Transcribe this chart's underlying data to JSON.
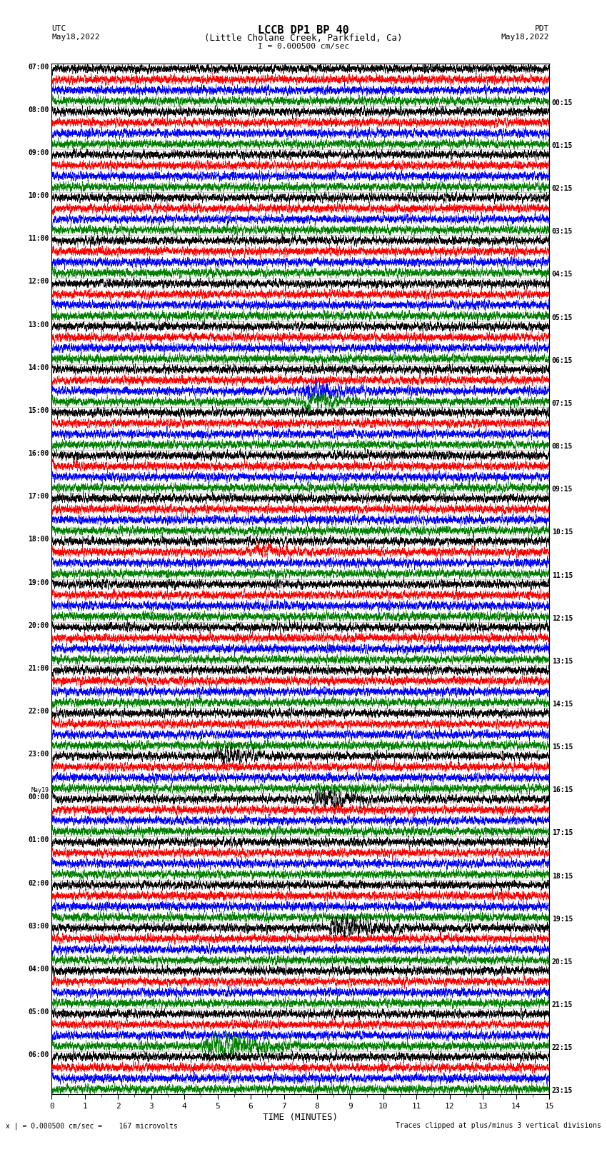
{
  "title_line1": "LCCB DP1 BP 40",
  "title_line2": "(Little Cholane Creek, Parkfield, Ca)",
  "scale_label": "I = 0.000500 cm/sec",
  "utc_label": "UTC",
  "pdt_label": "PDT",
  "date_left": "May18,2022",
  "date_right": "May18,2022",
  "xlabel": "TIME (MINUTES)",
  "footer_left": "x | = 0.000500 cm/sec =    167 microvolts",
  "footer_right": "Traces clipped at plus/minus 3 vertical divisions",
  "left_times": [
    "07:00",
    "08:00",
    "09:00",
    "10:00",
    "11:00",
    "12:00",
    "13:00",
    "14:00",
    "15:00",
    "16:00",
    "17:00",
    "18:00",
    "19:00",
    "20:00",
    "21:00",
    "22:00",
    "23:00",
    "May19\n00:00",
    "01:00",
    "02:00",
    "03:00",
    "04:00",
    "05:00",
    "06:00"
  ],
  "right_times": [
    "00:15",
    "01:15",
    "02:15",
    "03:15",
    "04:15",
    "05:15",
    "06:15",
    "07:15",
    "08:15",
    "09:15",
    "10:15",
    "11:15",
    "12:15",
    "13:15",
    "14:15",
    "15:15",
    "16:15",
    "17:15",
    "18:15",
    "19:15",
    "20:15",
    "21:15",
    "22:15",
    "23:15"
  ],
  "n_rows": 24,
  "n_traces_per_row": 4,
  "trace_colors": [
    "black",
    "red",
    "blue",
    "green"
  ],
  "fig_width": 8.5,
  "fig_height": 16.13,
  "dpi": 100,
  "xlim": [
    0,
    15
  ],
  "xticks": [
    0,
    1,
    2,
    3,
    4,
    5,
    6,
    7,
    8,
    9,
    10,
    11,
    12,
    13,
    14,
    15
  ],
  "bg_color": "white",
  "plot_bg_color": "white",
  "seed": 42
}
